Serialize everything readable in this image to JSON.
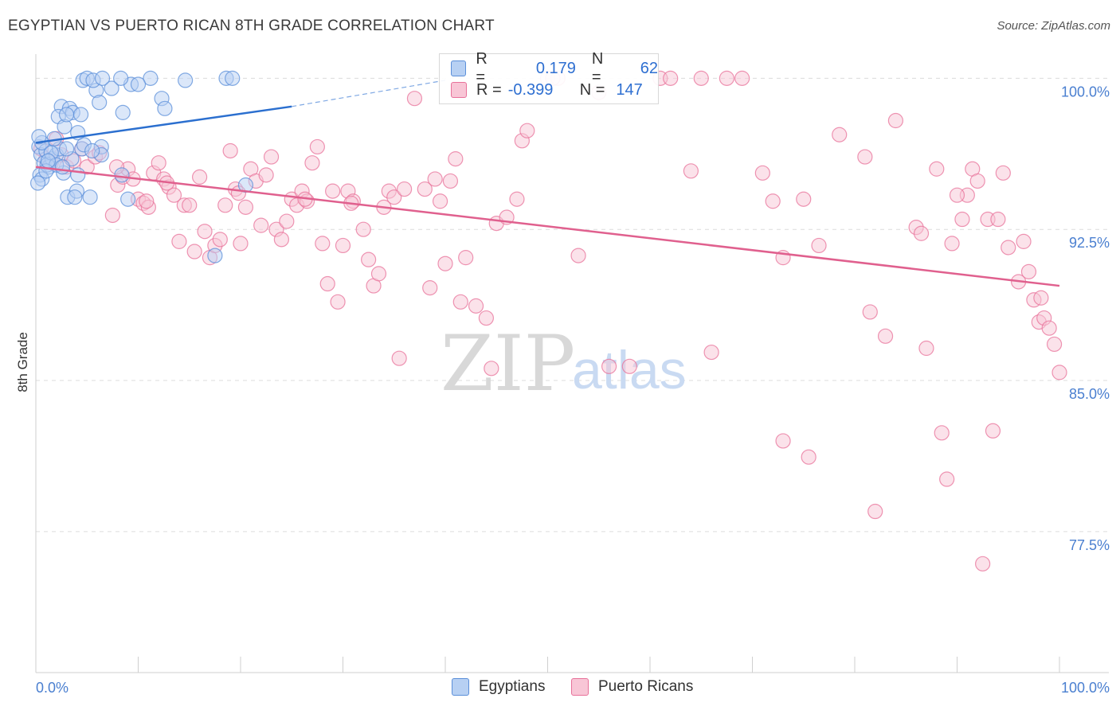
{
  "title": "EGYPTIAN VS PUERTO RICAN 8TH GRADE CORRELATION CHART",
  "source": "Source: ZipAtlas.com",
  "watermark": {
    "zip": "ZIP",
    "atlas": "atlas"
  },
  "colors": {
    "egyptian": "#5b8fd9",
    "egyptian_fill": "#b7d0f3",
    "puerto": "#e8719a",
    "puerto_fill": "#f8c6d6",
    "axis_label": "#4a7fd0"
  },
  "legend": {
    "rows": [
      {
        "swatch": "egyptian",
        "r_label": "R =",
        "r_value": "0.179",
        "n_label": "N =",
        "n_value": "62"
      },
      {
        "swatch": "puerto",
        "r_label": "R =",
        "r_value": "-0.399",
        "n_label": "N =",
        "n_value": "147"
      }
    ]
  },
  "bottom_legend": [
    {
      "label": "Egyptians"
    },
    {
      "label": "Puerto Ricans"
    }
  ],
  "chart_data": {
    "type": "scatter",
    "xlabel": "",
    "ylabel": "8th Grade",
    "xlim": [
      0,
      100
    ],
    "ylim": [
      70.5,
      101.2
    ],
    "x_tick_labels": [
      "0.0%",
      "100.0%"
    ],
    "y_ticks": [
      {
        "value": 100.0,
        "label": "100.0%"
      },
      {
        "value": 92.5,
        "label": "92.5%"
      },
      {
        "value": 85.0,
        "label": "85.0%"
      },
      {
        "value": 77.5,
        "label": "77.5%"
      }
    ],
    "grid": "horizontal dashed",
    "series": [
      {
        "name": "Egyptians",
        "color": "#5b8fd9",
        "trend": {
          "x": [
            0.0,
            25.0
          ],
          "y": [
            96.8,
            98.6
          ],
          "extended_to": [
            40.0,
            99.9
          ]
        },
        "points": [
          [
            0.3,
            96.6
          ],
          [
            0.5,
            96.2
          ],
          [
            0.8,
            95.8
          ],
          [
            1.0,
            96.4
          ],
          [
            1.3,
            95.6
          ],
          [
            1.6,
            96.0
          ],
          [
            2.0,
            96.2
          ],
          [
            2.3,
            96.5
          ],
          [
            0.4,
            95.2
          ],
          [
            0.6,
            95.0
          ],
          [
            0.2,
            94.8
          ],
          [
            1.1,
            95.7
          ],
          [
            1.8,
            97.0
          ],
          [
            2.5,
            98.6
          ],
          [
            3.3,
            98.5
          ],
          [
            3.6,
            98.3
          ],
          [
            2.2,
            98.1
          ],
          [
            2.8,
            97.6
          ],
          [
            3.0,
            98.2
          ],
          [
            4.1,
            97.3
          ],
          [
            4.5,
            96.5
          ],
          [
            4.7,
            96.7
          ],
          [
            6.4,
            96.6
          ],
          [
            6.4,
            96.2
          ],
          [
            4.4,
            98.2
          ],
          [
            5.9,
            99.4
          ],
          [
            6.2,
            98.8
          ],
          [
            4.6,
            99.9
          ],
          [
            5.0,
            100.0
          ],
          [
            5.6,
            99.9
          ],
          [
            7.4,
            99.5
          ],
          [
            9.3,
            99.7
          ],
          [
            8.3,
            100.0
          ],
          [
            11.2,
            100.0
          ],
          [
            14.6,
            99.9
          ],
          [
            18.6,
            100.0
          ],
          [
            19.2,
            100.0
          ],
          [
            10.0,
            99.7
          ],
          [
            12.3,
            99.0
          ],
          [
            12.6,
            98.5
          ],
          [
            8.5,
            98.3
          ],
          [
            3.1,
            94.1
          ],
          [
            4.0,
            94.4
          ],
          [
            5.3,
            94.1
          ],
          [
            3.8,
            94.1
          ],
          [
            2.7,
            95.3
          ],
          [
            4.1,
            95.2
          ],
          [
            8.4,
            95.2
          ],
          [
            9.0,
            94.0
          ],
          [
            17.5,
            91.2
          ],
          [
            20.5,
            94.7
          ],
          [
            0.6,
            96.8
          ],
          [
            1.5,
            96.3
          ],
          [
            2.0,
            95.7
          ],
          [
            3.5,
            96.0
          ],
          [
            5.5,
            96.4
          ],
          [
            1.0,
            95.4
          ],
          [
            0.3,
            97.1
          ],
          [
            6.5,
            100.0
          ],
          [
            3.0,
            96.5
          ],
          [
            2.6,
            95.6
          ],
          [
            1.2,
            95.9
          ]
        ]
      },
      {
        "name": "Puerto Ricans",
        "color": "#e8719a",
        "trend": {
          "x": [
            0.0,
            100.0
          ],
          "y": [
            95.6,
            89.7
          ]
        },
        "points": [
          [
            0.5,
            96.5
          ],
          [
            1.0,
            96.0
          ],
          [
            1.5,
            95.8
          ],
          [
            2.0,
            97.0
          ],
          [
            2.5,
            96.2
          ],
          [
            3.0,
            95.6
          ],
          [
            4.5,
            96.5
          ],
          [
            5.0,
            95.6
          ],
          [
            5.8,
            96.1
          ],
          [
            6.2,
            96.3
          ],
          [
            7.5,
            93.2
          ],
          [
            8.0,
            94.7
          ],
          [
            8.5,
            95.1
          ],
          [
            9.0,
            95.5
          ],
          [
            9.5,
            95.0
          ],
          [
            10.0,
            94.0
          ],
          [
            10.5,
            93.8
          ],
          [
            11.0,
            93.6
          ],
          [
            11.5,
            95.3
          ],
          [
            12.0,
            95.8
          ],
          [
            12.5,
            95.0
          ],
          [
            13.0,
            94.6
          ],
          [
            13.5,
            94.2
          ],
          [
            14.0,
            91.9
          ],
          [
            14.5,
            93.7
          ],
          [
            15.0,
            93.7
          ],
          [
            15.5,
            91.4
          ],
          [
            16.0,
            95.1
          ],
          [
            16.5,
            92.4
          ],
          [
            17.0,
            91.1
          ],
          [
            17.5,
            91.7
          ],
          [
            18.0,
            92.0
          ],
          [
            18.5,
            93.7
          ],
          [
            19.0,
            96.4
          ],
          [
            19.5,
            94.5
          ],
          [
            20.0,
            91.8
          ],
          [
            20.5,
            93.6
          ],
          [
            21.0,
            95.5
          ],
          [
            21.5,
            94.9
          ],
          [
            22.0,
            92.7
          ],
          [
            22.5,
            95.2
          ],
          [
            23.0,
            96.1
          ],
          [
            23.5,
            92.5
          ],
          [
            24.0,
            92.0
          ],
          [
            24.5,
            92.9
          ],
          [
            25.0,
            94.0
          ],
          [
            25.5,
            93.7
          ],
          [
            26.0,
            94.4
          ],
          [
            26.5,
            93.9
          ],
          [
            27.0,
            95.8
          ],
          [
            27.5,
            96.6
          ],
          [
            28.0,
            91.8
          ],
          [
            28.5,
            89.8
          ],
          [
            29.0,
            94.4
          ],
          [
            29.5,
            88.9
          ],
          [
            30.0,
            91.7
          ],
          [
            30.5,
            94.4
          ],
          [
            31.0,
            93.9
          ],
          [
            32.0,
            92.5
          ],
          [
            32.5,
            91.0
          ],
          [
            33.0,
            89.7
          ],
          [
            33.5,
            90.3
          ],
          [
            34.0,
            93.6
          ],
          [
            34.5,
            94.4
          ],
          [
            35.0,
            94.1
          ],
          [
            35.5,
            86.1
          ],
          [
            36.0,
            94.5
          ],
          [
            37.0,
            99.0
          ],
          [
            38.0,
            94.5
          ],
          [
            38.5,
            89.6
          ],
          [
            39.0,
            95.0
          ],
          [
            39.5,
            93.9
          ],
          [
            40.0,
            90.8
          ],
          [
            40.5,
            94.9
          ],
          [
            41.0,
            96.0
          ],
          [
            41.5,
            88.9
          ],
          [
            42.0,
            91.1
          ],
          [
            43.0,
            88.7
          ],
          [
            44.0,
            88.1
          ],
          [
            44.5,
            85.6
          ],
          [
            45.0,
            92.8
          ],
          [
            46.0,
            93.1
          ],
          [
            47.0,
            94.0
          ],
          [
            47.5,
            96.9
          ],
          [
            48.0,
            97.4
          ],
          [
            50.0,
            100.0
          ],
          [
            51.0,
            100.0
          ],
          [
            53.0,
            91.2
          ],
          [
            56.0,
            85.7
          ],
          [
            58.0,
            85.7
          ],
          [
            61.0,
            100.0
          ],
          [
            62.0,
            100.0
          ],
          [
            64.0,
            95.4
          ],
          [
            65.0,
            100.0
          ],
          [
            66.0,
            86.4
          ],
          [
            67.5,
            100.0
          ],
          [
            69.0,
            100.0
          ],
          [
            71.0,
            95.3
          ],
          [
            72.0,
            93.9
          ],
          [
            73.0,
            82.0
          ],
          [
            73.0,
            91.1
          ],
          [
            75.5,
            81.2
          ],
          [
            75.0,
            94.0
          ],
          [
            76.5,
            91.7
          ],
          [
            78.5,
            97.2
          ],
          [
            81.0,
            96.1
          ],
          [
            81.5,
            88.4
          ],
          [
            82.0,
            78.5
          ],
          [
            83.0,
            87.2
          ],
          [
            84.0,
            97.9
          ],
          [
            86.0,
            92.6
          ],
          [
            86.5,
            92.3
          ],
          [
            87.0,
            86.6
          ],
          [
            88.0,
            95.5
          ],
          [
            88.5,
            82.4
          ],
          [
            89.0,
            80.1
          ],
          [
            89.5,
            91.8
          ],
          [
            90.5,
            93.0
          ],
          [
            91.0,
            94.2
          ],
          [
            91.5,
            95.5
          ],
          [
            92.0,
            94.9
          ],
          [
            92.5,
            75.9
          ],
          [
            93.0,
            93.0
          ],
          [
            93.5,
            82.5
          ],
          [
            94.0,
            93.0
          ],
          [
            94.5,
            95.3
          ],
          [
            95.0,
            91.6
          ],
          [
            96.0,
            89.9
          ],
          [
            96.5,
            91.9
          ],
          [
            97.0,
            90.4
          ],
          [
            97.5,
            89.0
          ],
          [
            98.0,
            87.9
          ],
          [
            98.5,
            88.1
          ],
          [
            99.0,
            87.6
          ],
          [
            99.5,
            86.8
          ],
          [
            100.0,
            85.4
          ],
          [
            98.2,
            89.1
          ],
          [
            55.0,
            99.3
          ],
          [
            50.5,
            100.0
          ],
          [
            90.0,
            94.2
          ],
          [
            10.8,
            93.9
          ],
          [
            7.9,
            95.6
          ],
          [
            3.7,
            95.9
          ],
          [
            12.8,
            94.8
          ],
          [
            19.8,
            94.3
          ],
          [
            26.3,
            94.0
          ],
          [
            30.8,
            93.8
          ]
        ]
      }
    ]
  }
}
